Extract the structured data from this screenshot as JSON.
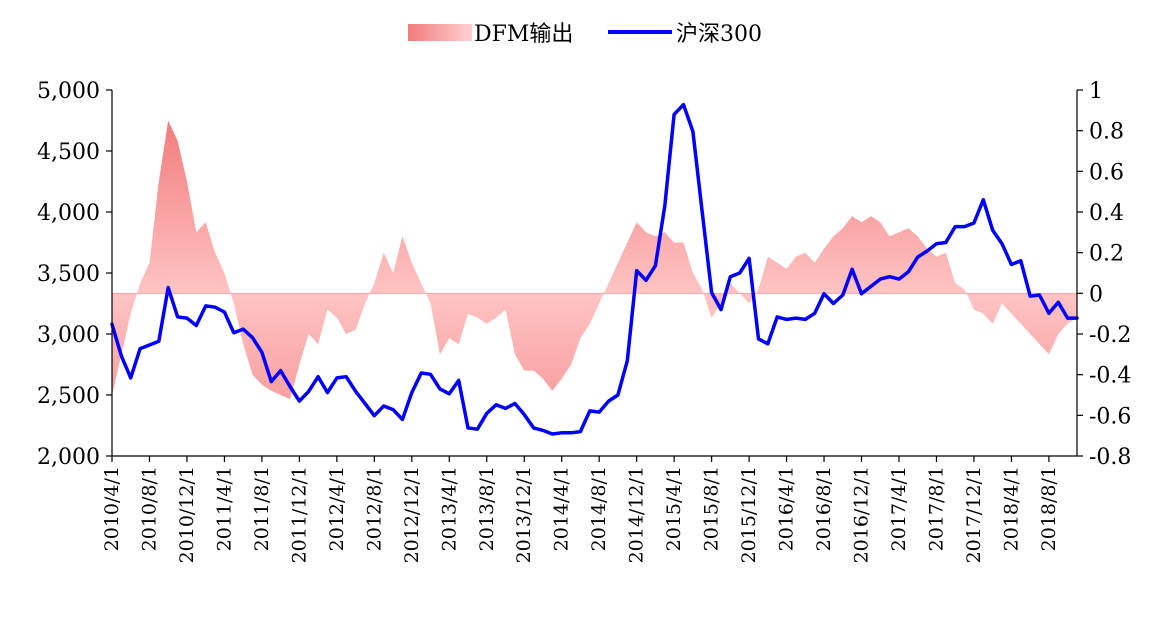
{
  "chart_data": {
    "type": "line",
    "title": "",
    "xlabel": "",
    "ylabel": "",
    "legend_position": "top-center",
    "grid": false,
    "x_ticks": [
      "2010/4/1",
      "2010/8/1",
      "2010/12/1",
      "2011/4/1",
      "2011/8/1",
      "2011/12/1",
      "2012/4/1",
      "2012/8/1",
      "2012/12/1",
      "2013/4/1",
      "2013/8/1",
      "2013/12/1",
      "2014/4/1",
      "2014/8/1",
      "2014/12/1",
      "2015/4/1",
      "2015/8/1",
      "2015/12/1",
      "2016/4/1",
      "2016/8/1",
      "2016/12/1",
      "2017/4/1",
      "2017/8/1",
      "2017/12/1",
      "2018/4/1",
      "2018/8/1"
    ],
    "x_start": "2010/4/1",
    "x_end": "2018/11/1",
    "y_left": {
      "min": 2000,
      "max": 5000,
      "tick_labels": [
        "2,000",
        "2,500",
        "3,000",
        "3,500",
        "4,000",
        "4,500",
        "5,000"
      ]
    },
    "y_right": {
      "min": -0.8,
      "max": 1.0,
      "tick_labels": [
        "-0.8",
        "-0.6",
        "-0.4",
        "-0.2",
        "0",
        "0.2",
        "0.4",
        "0.6",
        "0.8",
        "1"
      ]
    },
    "series": [
      {
        "name": "DFM输出",
        "kind": "area",
        "axis": "right",
        "color": "#f06f6f",
        "x": [
          "2010/4/1",
          "2010/5/1",
          "2010/6/1",
          "2010/7/1",
          "2010/8/1",
          "2010/9/1",
          "2010/10/1",
          "2010/11/1",
          "2010/12/1",
          "2011/1/1",
          "2011/2/1",
          "2011/3/1",
          "2011/4/1",
          "2011/5/1",
          "2011/6/1",
          "2011/7/1",
          "2011/8/1",
          "2011/9/1",
          "2011/10/1",
          "2011/11/1",
          "2011/12/1",
          "2012/1/1",
          "2012/2/1",
          "2012/3/1",
          "2012/4/1",
          "2012/5/1",
          "2012/6/1",
          "2012/7/1",
          "2012/8/1",
          "2012/9/1",
          "2012/10/1",
          "2012/11/1",
          "2012/12/1",
          "2013/1/1",
          "2013/2/1",
          "2013/3/1",
          "2013/4/1",
          "2013/5/1",
          "2013/6/1",
          "2013/7/1",
          "2013/8/1",
          "2013/9/1",
          "2013/10/1",
          "2013/11/1",
          "2013/12/1",
          "2014/1/1",
          "2014/2/1",
          "2014/3/1",
          "2014/4/1",
          "2014/5/1",
          "2014/6/1",
          "2014/7/1",
          "2014/8/1",
          "2014/9/1",
          "2014/10/1",
          "2014/11/1",
          "2014/12/1",
          "2015/1/1",
          "2015/2/1",
          "2015/3/1",
          "2015/4/1",
          "2015/5/1",
          "2015/6/1",
          "2015/7/1",
          "2015/8/1",
          "2015/9/1",
          "2015/10/1",
          "2015/11/1",
          "2015/12/1",
          "2016/1/1",
          "2016/2/1",
          "2016/3/1",
          "2016/4/1",
          "2016/5/1",
          "2016/6/1",
          "2016/7/1",
          "2016/8/1",
          "2016/9/1",
          "2016/10/1",
          "2016/11/1",
          "2016/12/1",
          "2017/1/1",
          "2017/2/1",
          "2017/3/1",
          "2017/4/1",
          "2017/5/1",
          "2017/6/1",
          "2017/7/1",
          "2017/8/1",
          "2017/9/1",
          "2017/10/1",
          "2017/11/1",
          "2017/12/1",
          "2018/1/1",
          "2018/2/1",
          "2018/3/1",
          "2018/4/1",
          "2018/5/1",
          "2018/6/1",
          "2018/7/1",
          "2018/8/1",
          "2018/9/1",
          "2018/10/1",
          "2018/11/1"
        ],
        "values": [
          -0.5,
          -0.3,
          -0.1,
          0.05,
          0.15,
          0.55,
          0.85,
          0.75,
          0.55,
          0.3,
          0.35,
          0.2,
          0.1,
          -0.05,
          -0.25,
          -0.4,
          -0.45,
          -0.48,
          -0.5,
          -0.52,
          -0.35,
          -0.2,
          -0.25,
          -0.08,
          -0.12,
          -0.2,
          -0.18,
          -0.05,
          0.05,
          0.2,
          0.1,
          0.28,
          0.15,
          0.05,
          -0.05,
          -0.3,
          -0.22,
          -0.25,
          -0.1,
          -0.12,
          -0.15,
          -0.12,
          -0.08,
          -0.3,
          -0.38,
          -0.38,
          -0.42,
          -0.48,
          -0.42,
          -0.35,
          -0.22,
          -0.15,
          -0.05,
          0.05,
          0.15,
          0.25,
          0.35,
          0.3,
          0.28,
          0.3,
          0.25,
          0.25,
          0.1,
          0.02,
          -0.12,
          -0.05,
          0.05,
          0.0,
          -0.05,
          0.02,
          0.18,
          0.15,
          0.12,
          0.18,
          0.2,
          0.15,
          0.22,
          0.28,
          0.32,
          0.38,
          0.35,
          0.38,
          0.35,
          0.28,
          0.3,
          0.32,
          0.28,
          0.22,
          0.18,
          0.2,
          0.05,
          0.02,
          -0.08,
          -0.1,
          -0.15,
          -0.05,
          -0.1,
          -0.15,
          -0.2,
          -0.25,
          -0.3,
          -0.2,
          -0.15,
          -0.12
        ]
      },
      {
        "name": "沪深300",
        "kind": "line",
        "axis": "left",
        "color": "#0000ff",
        "x": [
          "2010/4/1",
          "2010/5/1",
          "2010/6/1",
          "2010/7/1",
          "2010/8/1",
          "2010/9/1",
          "2010/10/1",
          "2010/11/1",
          "2010/12/1",
          "2011/1/1",
          "2011/2/1",
          "2011/3/1",
          "2011/4/1",
          "2011/5/1",
          "2011/6/1",
          "2011/7/1",
          "2011/8/1",
          "2011/9/1",
          "2011/10/1",
          "2011/11/1",
          "2011/12/1",
          "2012/1/1",
          "2012/2/1",
          "2012/3/1",
          "2012/4/1",
          "2012/5/1",
          "2012/6/1",
          "2012/7/1",
          "2012/8/1",
          "2012/9/1",
          "2012/10/1",
          "2012/11/1",
          "2012/12/1",
          "2013/1/1",
          "2013/2/1",
          "2013/3/1",
          "2013/4/1",
          "2013/5/1",
          "2013/6/1",
          "2013/7/1",
          "2013/8/1",
          "2013/9/1",
          "2013/10/1",
          "2013/11/1",
          "2013/12/1",
          "2014/1/1",
          "2014/2/1",
          "2014/3/1",
          "2014/4/1",
          "2014/5/1",
          "2014/6/1",
          "2014/7/1",
          "2014/8/1",
          "2014/9/1",
          "2014/10/1",
          "2014/11/1",
          "2014/12/1",
          "2015/1/1",
          "2015/2/1",
          "2015/3/1",
          "2015/4/1",
          "2015/5/1",
          "2015/6/1",
          "2015/7/1",
          "2015/8/1",
          "2015/9/1",
          "2015/10/1",
          "2015/11/1",
          "2015/12/1",
          "2016/1/1",
          "2016/2/1",
          "2016/3/1",
          "2016/4/1",
          "2016/5/1",
          "2016/6/1",
          "2016/7/1",
          "2016/8/1",
          "2016/9/1",
          "2016/10/1",
          "2016/11/1",
          "2016/12/1",
          "2017/1/1",
          "2017/2/1",
          "2017/3/1",
          "2017/4/1",
          "2017/5/1",
          "2017/6/1",
          "2017/7/1",
          "2017/8/1",
          "2017/9/1",
          "2017/10/1",
          "2017/11/1",
          "2017/12/1",
          "2018/1/1",
          "2018/2/1",
          "2018/3/1",
          "2018/4/1",
          "2018/5/1",
          "2018/6/1",
          "2018/7/1",
          "2018/8/1",
          "2018/9/1",
          "2018/10/1",
          "2018/11/1"
        ],
        "values": [
          3080,
          2820,
          2640,
          2880,
          2910,
          2940,
          3380,
          3140,
          3130,
          3070,
          3230,
          3220,
          3180,
          3010,
          3040,
          2970,
          2850,
          2610,
          2700,
          2570,
          2450,
          2530,
          2650,
          2520,
          2640,
          2650,
          2530,
          2430,
          2330,
          2410,
          2380,
          2300,
          2520,
          2680,
          2670,
          2550,
          2510,
          2620,
          2230,
          2220,
          2350,
          2420,
          2390,
          2430,
          2340,
          2230,
          2210,
          2180,
          2190,
          2190,
          2200,
          2370,
          2360,
          2450,
          2500,
          2780,
          3520,
          3440,
          3560,
          4050,
          4800,
          4880,
          4660,
          4000,
          3340,
          3200,
          3470,
          3500,
          3620,
          2960,
          2920,
          3140,
          3120,
          3130,
          3120,
          3170,
          3330,
          3250,
          3320,
          3530,
          3330,
          3390,
          3450,
          3470,
          3450,
          3510,
          3630,
          3680,
          3740,
          3750,
          3880,
          3880,
          3910,
          4100,
          3850,
          3740,
          3570,
          3600,
          3310,
          3320,
          3170,
          3260,
          3130,
          3130
        ]
      }
    ]
  }
}
